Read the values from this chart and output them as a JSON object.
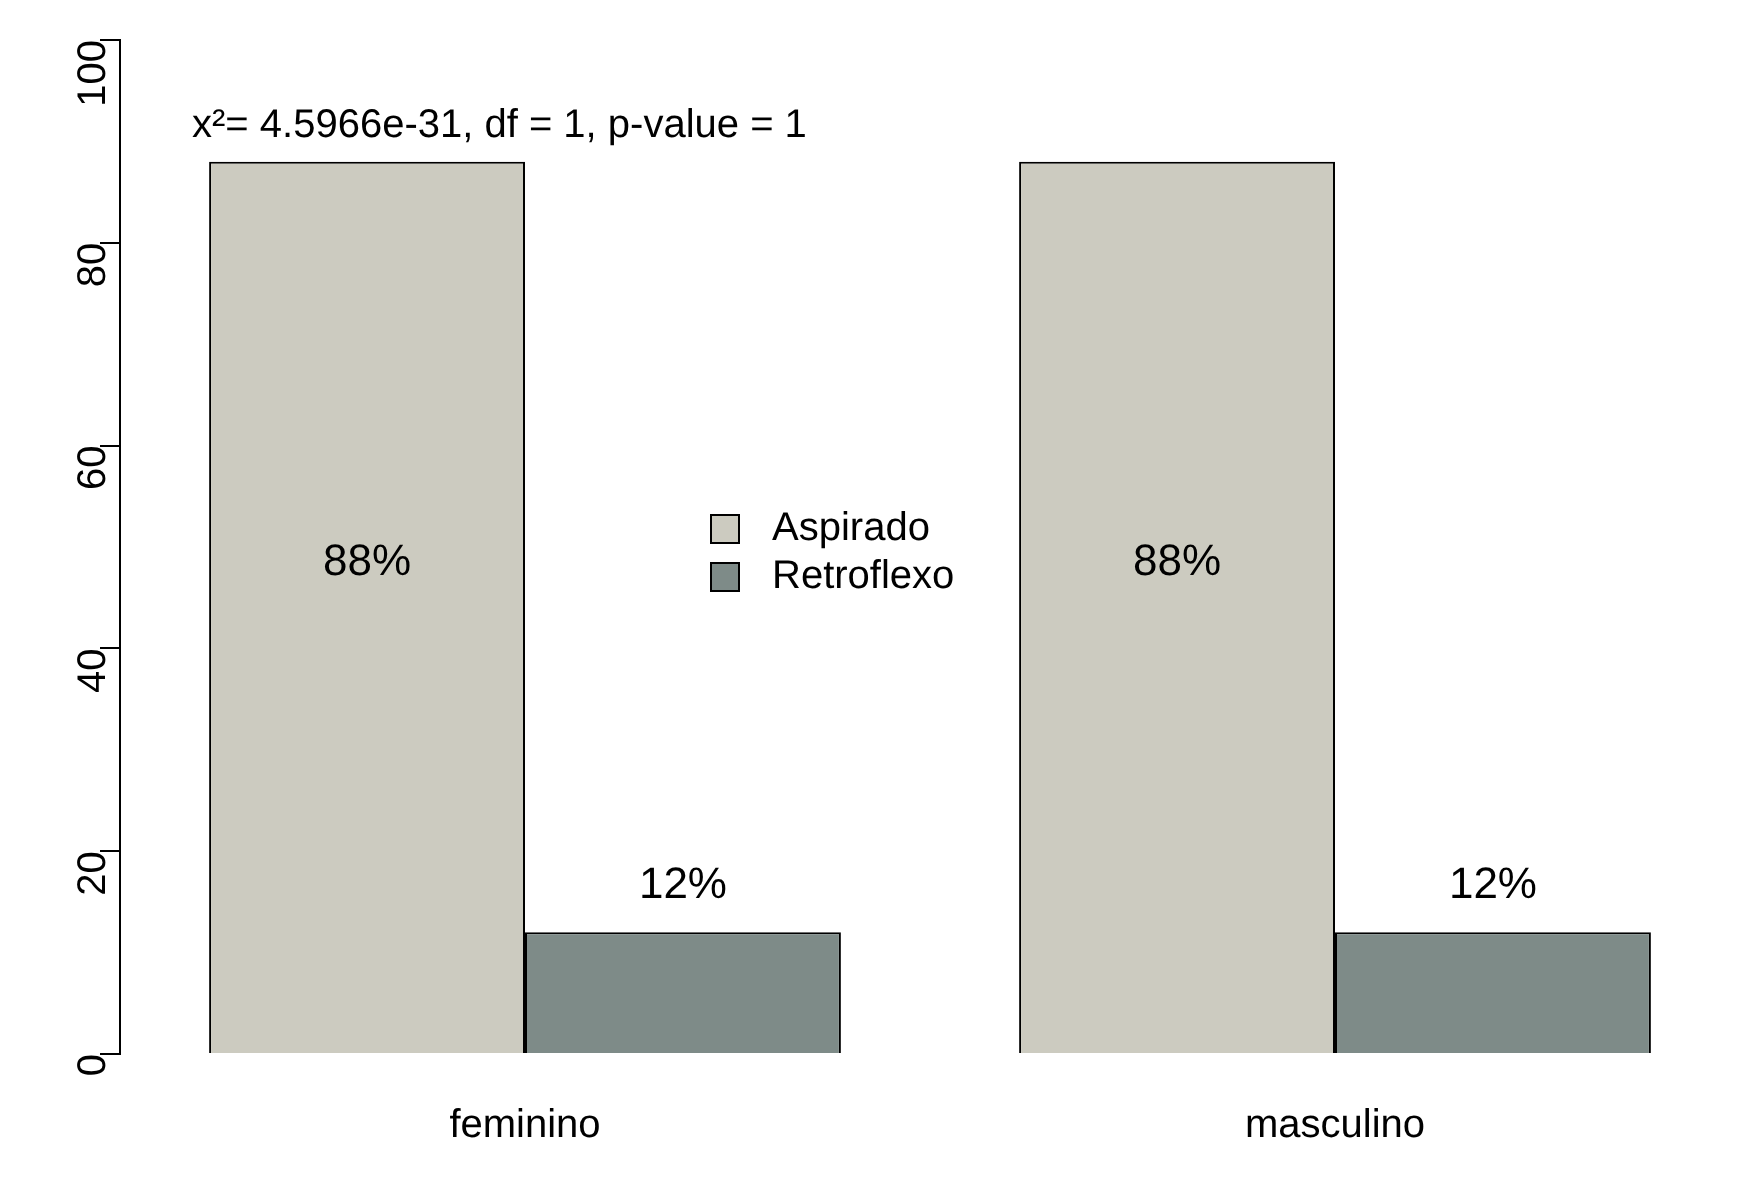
{
  "chart_data": {
    "type": "bar",
    "categories": [
      "feminino",
      "masculino"
    ],
    "series": [
      {
        "name": "Aspirado",
        "color": "#cccbc0",
        "values": [
          88,
          88
        ],
        "value_labels": [
          "88%",
          "88%"
        ]
      },
      {
        "name": "Retroflexo",
        "color": "#7e8b88",
        "values": [
          12,
          12
        ],
        "value_labels": [
          "12%",
          "12%"
        ]
      }
    ],
    "ylim": [
      0,
      100
    ],
    "yticks": [
      0,
      20,
      40,
      60,
      80,
      100
    ],
    "grid": false,
    "legend": "center",
    "annotations": [
      "x²= 4.5966e-31, df = 1, p-value = 1"
    ]
  }
}
